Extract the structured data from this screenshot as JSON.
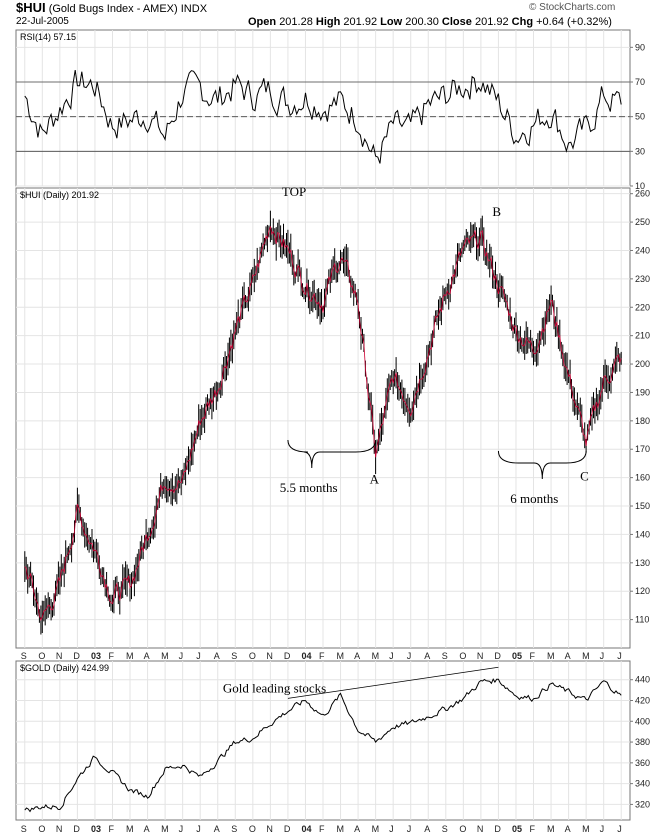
{
  "header": {
    "symbol": "$HUI",
    "name": "(Gold Bugs Index - AMEX)",
    "exchange": "INDX",
    "date": "22-Jul-2005",
    "open_label": "Open",
    "open": "201.28",
    "high_label": "High",
    "high": "201.92",
    "low_label": "Low",
    "low": "200.30",
    "close_label": "Close",
    "close": "201.92",
    "chg_label": "Chg",
    "chg": "+0.64 (+0.32%)",
    "watermark": "© StockCharts.com"
  },
  "chart_data": [
    {
      "type": "line",
      "panel": "rsi",
      "label": "RSI(14) 57.15",
      "ylim": [
        10,
        100
      ],
      "ticks": [
        90,
        70,
        50,
        30,
        10
      ],
      "reference_lines": [
        70,
        50,
        30
      ],
      "x": [
        "2002-09",
        "2002-10",
        "2002-11",
        "2002-12",
        "2003-01",
        "2003-02",
        "2003-03",
        "2003-04",
        "2003-05",
        "2003-06",
        "2003-07",
        "2003-08",
        "2003-09",
        "2003-10",
        "2003-11",
        "2003-12",
        "2004-01",
        "2004-02",
        "2004-03",
        "2004-04",
        "2004-05",
        "2004-06",
        "2004-07",
        "2004-08",
        "2004-09",
        "2004-10",
        "2004-11",
        "2004-12",
        "2005-01",
        "2005-02",
        "2005-03",
        "2005-04",
        "2005-05",
        "2005-06",
        "2005-07"
      ],
      "values": [
        62,
        40,
        55,
        70,
        68,
        45,
        48,
        52,
        38,
        64,
        66,
        60,
        68,
        62,
        66,
        58,
        62,
        56,
        58,
        50,
        24,
        44,
        42,
        56,
        62,
        68,
        72,
        58,
        40,
        46,
        54,
        34,
        42,
        62,
        57
      ],
      "grid": true
    },
    {
      "type": "line",
      "panel": "hui",
      "label": "$HUI (Daily) 201.92",
      "ylim": [
        100,
        262
      ],
      "ticks": [
        260,
        250,
        240,
        230,
        220,
        210,
        200,
        190,
        180,
        170,
        160,
        150,
        140,
        130,
        120,
        110
      ],
      "series_color": "#cc0033",
      "x": [
        "2002-09",
        "2002-10",
        "2002-11",
        "2002-12",
        "2003-01",
        "2003-02",
        "2003-03",
        "2003-04",
        "2003-05",
        "2003-06",
        "2003-07",
        "2003-08",
        "2003-09",
        "2003-10",
        "2003-11",
        "2003-12",
        "2004-01",
        "2004-02",
        "2004-03",
        "2004-04",
        "2004-05",
        "2004-06",
        "2004-07",
        "2004-08",
        "2004-09",
        "2004-10",
        "2004-11",
        "2004-12",
        "2005-01",
        "2005-02",
        "2005-03",
        "2005-04",
        "2005-05",
        "2005-06",
        "2005-07"
      ],
      "values": [
        130,
        110,
        122,
        148,
        135,
        118,
        122,
        140,
        160,
        158,
        180,
        192,
        212,
        228,
        250,
        240,
        228,
        222,
        238,
        222,
        168,
        195,
        186,
        205,
        225,
        240,
        244,
        228,
        212,
        205,
        222,
        196,
        172,
        194,
        202
      ],
      "annotations": [
        {
          "label": "TOP",
          "date": "2003-12",
          "value": 255
        },
        {
          "label": "A",
          "date": "2004-05",
          "value": 165
        },
        {
          "label": "B",
          "date": "2004-12",
          "value": 248
        },
        {
          "label": "C",
          "date": "2005-05",
          "value": 166
        },
        {
          "label": "5.5 months",
          "from": "2003-12",
          "to": "2004-05"
        },
        {
          "label": "6 months",
          "from": "2004-12",
          "to": "2005-05"
        }
      ],
      "grid": true
    },
    {
      "type": "line",
      "panel": "gold",
      "label": "$GOLD (Daily) 424.99",
      "ylim": [
        305,
        458
      ],
      "ticks": [
        440,
        420,
        400,
        380,
        360,
        340,
        320
      ],
      "x": [
        "2002-09",
        "2002-10",
        "2002-11",
        "2002-12",
        "2003-01",
        "2003-02",
        "2003-03",
        "2003-04",
        "2003-05",
        "2003-06",
        "2003-07",
        "2003-08",
        "2003-09",
        "2003-10",
        "2003-11",
        "2003-12",
        "2004-01",
        "2004-02",
        "2004-03",
        "2004-04",
        "2004-05",
        "2004-06",
        "2004-07",
        "2004-08",
        "2004-09",
        "2004-10",
        "2004-11",
        "2004-12",
        "2005-01",
        "2005-02",
        "2005-03",
        "2005-04",
        "2005-05",
        "2005-06",
        "2005-07"
      ],
      "values": [
        314,
        318,
        318,
        345,
        366,
        350,
        334,
        328,
        354,
        358,
        346,
        362,
        380,
        384,
        398,
        410,
        420,
        405,
        425,
        392,
        380,
        395,
        398,
        405,
        412,
        422,
        438,
        440,
        425,
        422,
        436,
        428,
        420,
        438,
        425
      ],
      "annotation": {
        "label": "Gold leading stocks",
        "from": "2003-12",
        "to": "2004-12"
      },
      "grid": true
    }
  ],
  "x_axis": {
    "labels": [
      "S",
      "O",
      "N",
      "D",
      "03",
      "F",
      "M",
      "A",
      "M",
      "J",
      "J",
      "A",
      "S",
      "O",
      "N",
      "D",
      "04",
      "F",
      "M",
      "A",
      "M",
      "J",
      "J",
      "A",
      "S",
      "O",
      "N",
      "D",
      "05",
      "F",
      "M",
      "A",
      "M",
      "J",
      "J"
    ]
  }
}
